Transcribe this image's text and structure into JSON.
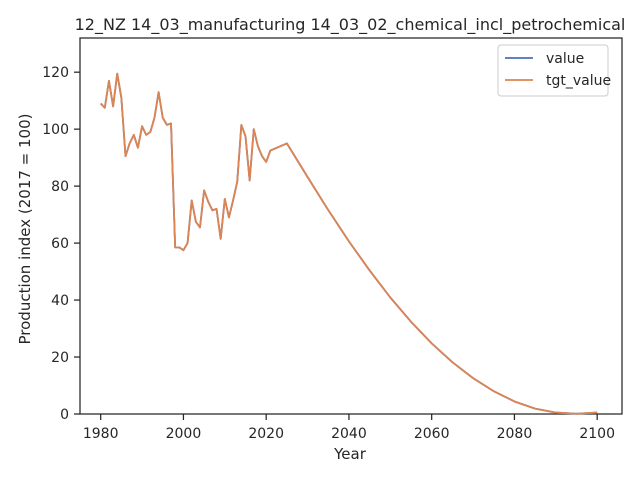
{
  "chart_data": {
    "type": "line",
    "title": "12_NZ 14_03_manufacturing 14_03_02_chemical_incl_petrochemical",
    "xlabel": "Year",
    "ylabel": "Production index (2017 = 100)",
    "xlim": [
      1975,
      2106
    ],
    "ylim": [
      0,
      132
    ],
    "xticks": [
      1980,
      2000,
      2020,
      2040,
      2060,
      2080,
      2100
    ],
    "yticks": [
      0,
      20,
      40,
      60,
      80,
      100,
      120
    ],
    "grid": false,
    "legend_position": "top-right",
    "series": [
      {
        "name": "value",
        "color": "#4c72b0",
        "x": [
          1980,
          1981,
          1982,
          1983,
          1984,
          1985,
          1986,
          1987,
          1988,
          1989,
          1990,
          1991,
          1992,
          1993,
          1994,
          1995,
          1996,
          1997,
          1998,
          1999,
          2000,
          2001,
          2002,
          2003,
          2004,
          2005,
          2006,
          2007,
          2008,
          2009,
          2010,
          2011,
          2012,
          2013,
          2014,
          2015,
          2016,
          2017,
          2018,
          2019,
          2020,
          2021,
          2025,
          2030,
          2035,
          2040,
          2045,
          2050,
          2055,
          2060,
          2065,
          2070,
          2075,
          2080,
          2085,
          2090,
          2095,
          2100
        ],
        "y": [
          109,
          107.5,
          117,
          108,
          119.5,
          111,
          90.5,
          95,
          98,
          93.5,
          101,
          98,
          99,
          104,
          113,
          104,
          101.5,
          102,
          58.5,
          58.5,
          57.5,
          60,
          75,
          67.5,
          65.5,
          78.5,
          74.5,
          71.5,
          72,
          61.5,
          75.5,
          69,
          75,
          81.5,
          101.5,
          97.5,
          82,
          100,
          94,
          90.5,
          88.5,
          92.5,
          95,
          83.2,
          71.6,
          60.6,
          50.4,
          40.9,
          32.4,
          24.8,
          18.2,
          12.6,
          8.0,
          4.4,
          1.9,
          0.5,
          0.1,
          0.5
        ]
      },
      {
        "name": "tgt_value",
        "color": "#dd8452",
        "x": [
          1980,
          1981,
          1982,
          1983,
          1984,
          1985,
          1986,
          1987,
          1988,
          1989,
          1990,
          1991,
          1992,
          1993,
          1994,
          1995,
          1996,
          1997,
          1998,
          1999,
          2000,
          2001,
          2002,
          2003,
          2004,
          2005,
          2006,
          2007,
          2008,
          2009,
          2010,
          2011,
          2012,
          2013,
          2014,
          2015,
          2016,
          2017,
          2018,
          2019,
          2020,
          2021,
          2025,
          2030,
          2035,
          2040,
          2045,
          2050,
          2055,
          2060,
          2065,
          2070,
          2075,
          2080,
          2085,
          2090,
          2095,
          2100
        ],
        "y": [
          109,
          107.5,
          117,
          108,
          119.5,
          111,
          90.5,
          95,
          98,
          93.5,
          101,
          98,
          99,
          104,
          113,
          104,
          101.5,
          102,
          58.5,
          58.5,
          57.5,
          60,
          75,
          67.5,
          65.5,
          78.5,
          74.5,
          71.5,
          72,
          61.5,
          75.5,
          69,
          75,
          81.5,
          101.5,
          97.5,
          82,
          100,
          94,
          90.5,
          88.5,
          92.5,
          95,
          83.2,
          71.6,
          60.6,
          50.4,
          40.9,
          32.4,
          24.8,
          18.2,
          12.6,
          8.0,
          4.4,
          1.9,
          0.5,
          0.1,
          0.5
        ]
      }
    ]
  }
}
